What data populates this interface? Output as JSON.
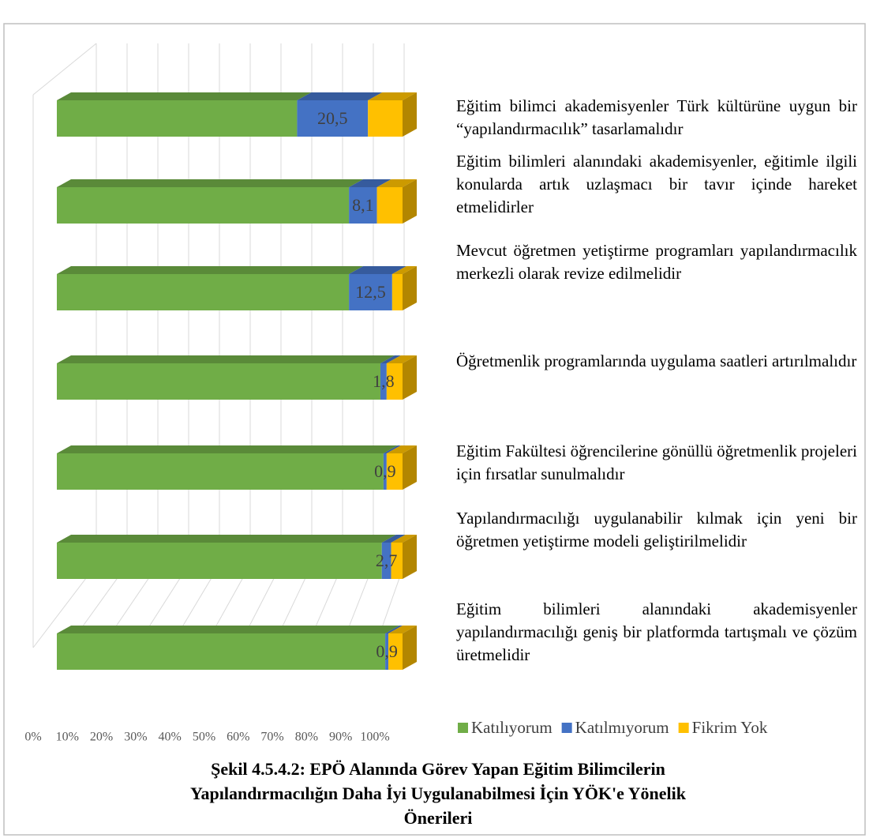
{
  "chart_data": {
    "type": "stacked_bar_3d",
    "categories": [
      "Eğitim bilimci akademisyenler Türk kültürüne uygun bir “yapılandırmacılık” tasarlamalıdır",
      "Eğitim bilimleri alanındaki akademisyenler, eğitimle ilgili konularda artık uzlaşmacı bir tavır içinde hareket etmelidirler",
      "Mevcut öğretmen yetiştirme programları yapılandırmacılık merkezli olarak revize edilmelidir",
      "Öğretmenlik programlarında uygulama saatleri artırılmalıdır",
      "Eğitim Fakültesi öğrencilerine gönüllü öğretmenlik projeleri için fırsatlar sunulmalıdır",
      "Yapılandırmacılığı uygulanabilir kılmak için yeni bir öğretmen yetiştirme modeli geliştirilmelidir",
      "Eğitim bilimleri alanındaki akademisyenler yapılandırmacılığı geniş bir platformda tartışmalı ve çözüm üretmelidir"
    ],
    "series": [
      {
        "name": "Katılıyorum",
        "color": "#70ad47",
        "values": [
          69.5,
          84.5,
          84.5,
          93.6,
          94.5,
          94.0,
          95.0
        ]
      },
      {
        "name": "Katılmıyorum",
        "color": "#4472c4",
        "values": [
          20.5,
          8.1,
          12.5,
          1.8,
          0.9,
          2.7,
          0.9
        ],
        "value_labels": [
          "20,5",
          "8,1",
          "12,5",
          "1,8",
          "0,9",
          "2,7",
          "0,9"
        ]
      },
      {
        "name": "Fikrim Yok",
        "color": "#ffc000",
        "values": [
          10.0,
          7.4,
          3.0,
          4.6,
          4.6,
          3.3,
          4.1
        ]
      }
    ],
    "xlim": [
      0,
      100
    ],
    "xticks": [
      {
        "value": 0,
        "label": "0%"
      },
      {
        "value": 10,
        "label": "10%"
      },
      {
        "value": 20,
        "label": "20%"
      },
      {
        "value": 30,
        "label": "30%"
      },
      {
        "value": 40,
        "label": "40%"
      },
      {
        "value": 50,
        "label": "50%"
      },
      {
        "value": 60,
        "label": "60%"
      },
      {
        "value": 70,
        "label": "70%"
      },
      {
        "value": 80,
        "label": "80%"
      },
      {
        "value": 90,
        "label": "90%"
      },
      {
        "value": 100,
        "label": "100%"
      }
    ],
    "grid": true,
    "caption": [
      "Şekil 4.5.4.2: EPÖ Alanında Görev Yapan Eğitim Bilimcilerin",
      "Yapılandırmacılığın Daha İyi Uygulanabilmesi İçin YÖK'e Yönelik",
      "Önerileri"
    ]
  }
}
